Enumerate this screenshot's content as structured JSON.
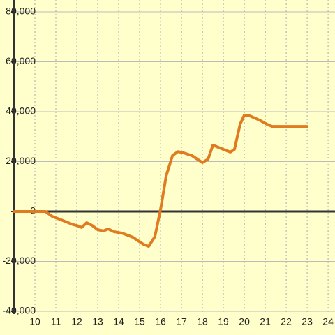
{
  "chart_data": {
    "type": "line",
    "x": [
      9.0,
      10.5,
      10.83,
      11.33,
      11.83,
      12.0,
      12.23,
      12.47,
      12.73,
      13.0,
      13.27,
      13.5,
      13.77,
      14.17,
      14.67,
      15.17,
      15.43,
      15.73,
      16.0,
      16.27,
      16.57,
      16.83,
      17.1,
      17.5,
      18.0,
      18.27,
      18.5,
      19.0,
      19.33,
      19.53,
      19.8,
      20.0,
      20.27,
      20.73,
      21.07,
      21.33,
      23.0
    ],
    "values": [
      0,
      0,
      -2000,
      -3600,
      -5300,
      -5600,
      -6400,
      -4500,
      -5600,
      -7300,
      -7800,
      -7000,
      -8100,
      -8700,
      -10300,
      -13100,
      -14000,
      -10100,
      800,
      14300,
      22400,
      24000,
      23500,
      22400,
      19600,
      21000,
      26600,
      24900,
      23800,
      24900,
      35000,
      38600,
      38300,
      36600,
      35000,
      34100,
      34100
    ],
    "color": "#e07b20",
    "xlim": [
      9,
      24.33
    ],
    "ylim": [
      -40000,
      80000
    ],
    "xticks": [
      10,
      11,
      12,
      13,
      14,
      15,
      16,
      17,
      18,
      19,
      20,
      21,
      22,
      23,
      24
    ],
    "yticks": [
      {
        "value": -40000,
        "label": "-40,000"
      },
      {
        "value": -20000,
        "label": "-20,000"
      },
      0,
      {
        "value": 20000,
        "label": "20,000"
      },
      {
        "value": 40000,
        "label": "40,000"
      },
      {
        "value": 60000,
        "label": "60,000"
      },
      {
        "value": 80000,
        "label": "80,000"
      }
    ],
    "grid": true
  }
}
